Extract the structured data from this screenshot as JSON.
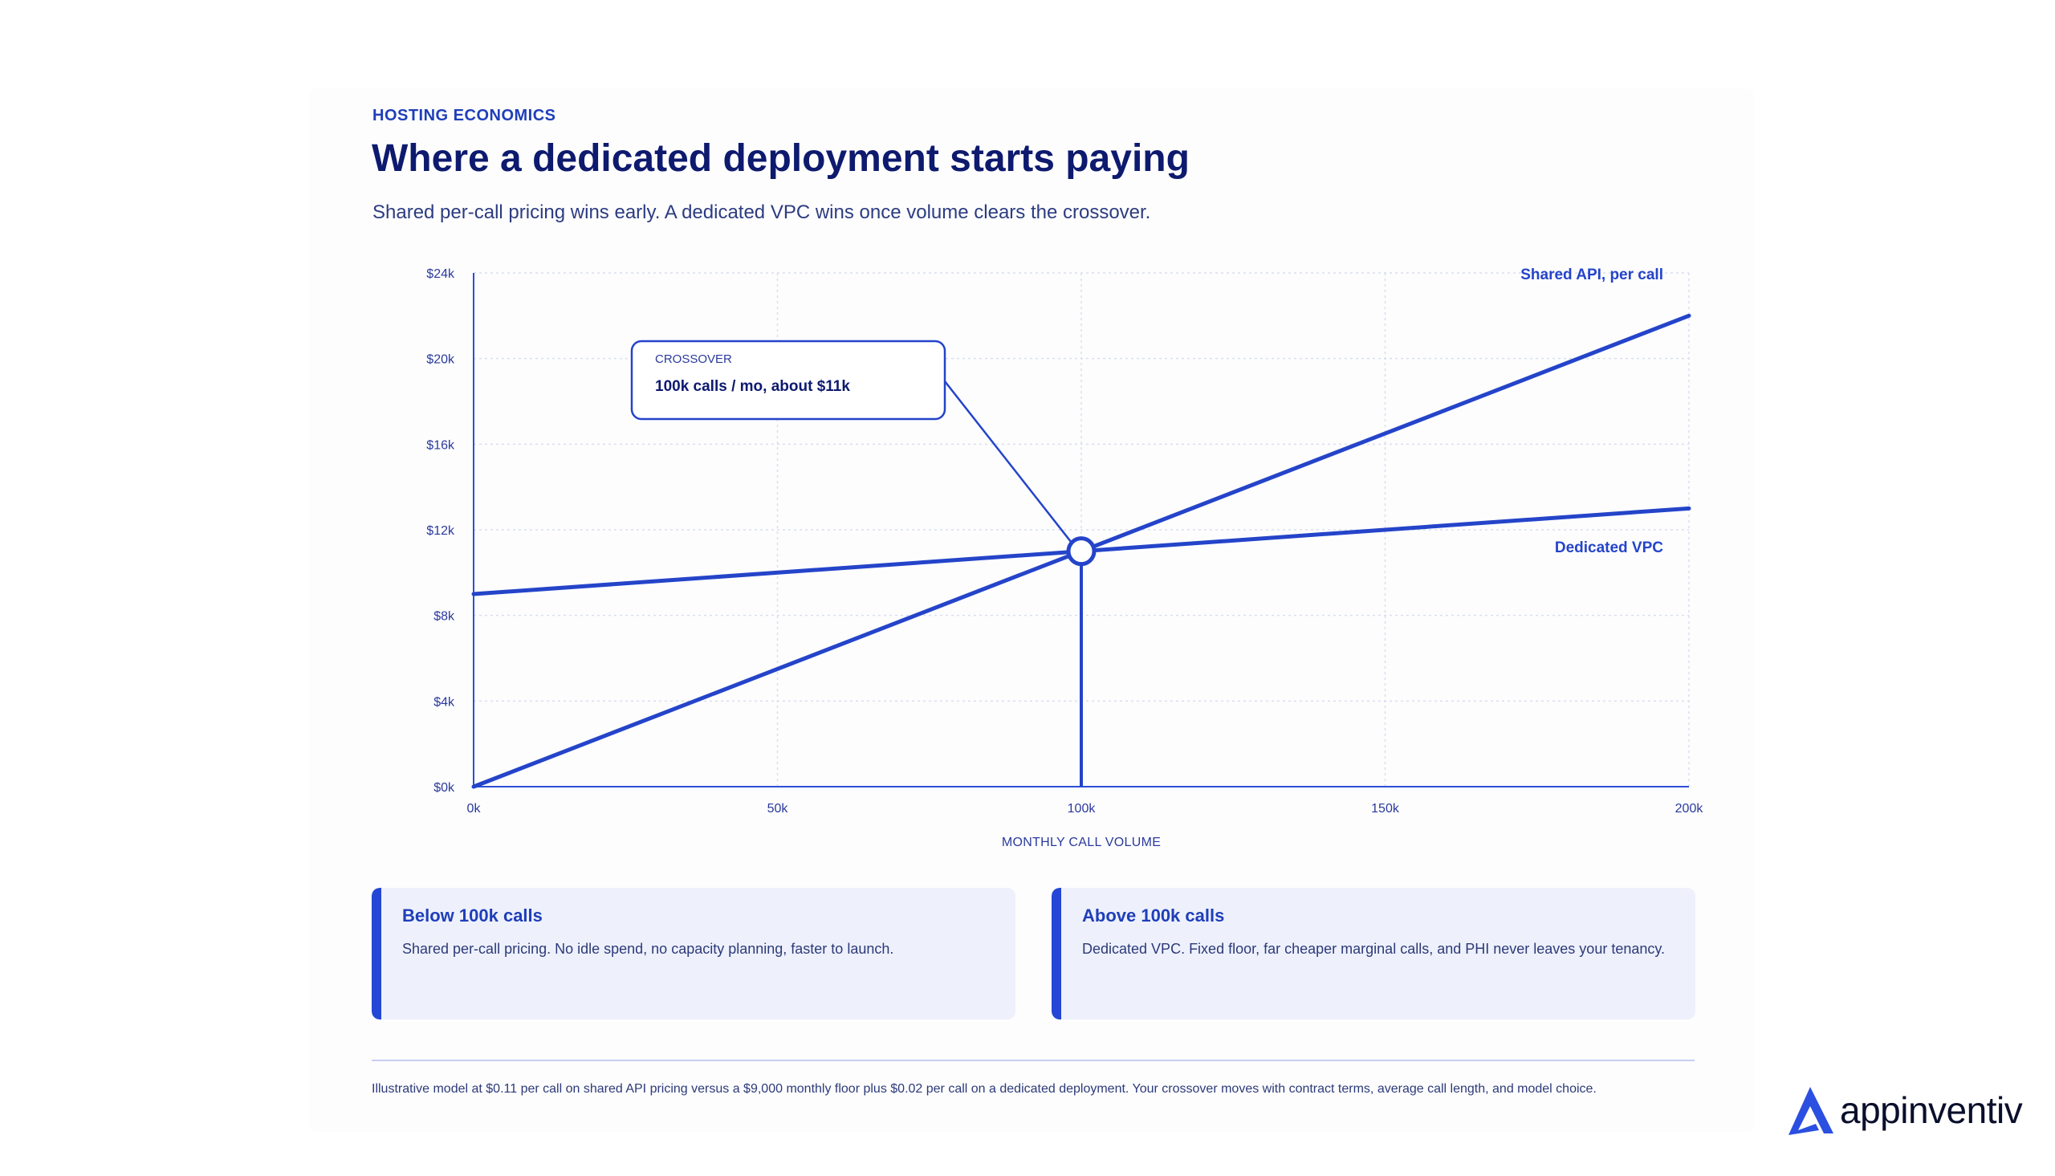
{
  "header": {
    "eyebrow": "HOSTING ECONOMICS",
    "title": "Where a dedicated deployment starts paying",
    "subtitle": "Shared per-call pricing wins early. A dedicated VPC wins once volume clears the crossover."
  },
  "chart_data": {
    "type": "line",
    "xlabel": "MONTHLY CALL VOLUME",
    "ylabel": "",
    "xlim": [
      0,
      200000
    ],
    "ylim": [
      0,
      24000
    ],
    "x_ticks": [
      {
        "value": 0,
        "label": "0k"
      },
      {
        "value": 50000,
        "label": "50k"
      },
      {
        "value": 100000,
        "label": "100k"
      },
      {
        "value": 150000,
        "label": "150k"
      },
      {
        "value": 200000,
        "label": "200k"
      }
    ],
    "y_ticks": [
      {
        "value": 0,
        "label": "$0k"
      },
      {
        "value": 4000,
        "label": "$4k"
      },
      {
        "value": 8000,
        "label": "$8k"
      },
      {
        "value": 12000,
        "label": "$12k"
      },
      {
        "value": 16000,
        "label": "$16k"
      },
      {
        "value": 20000,
        "label": "$20k"
      },
      {
        "value": 24000,
        "label": "$24k"
      }
    ],
    "grid": true,
    "series": [
      {
        "name": "Shared API, per call",
        "x": [
          0,
          200000
        ],
        "y": [
          0,
          22000
        ]
      },
      {
        "name": "Dedicated VPC",
        "x": [
          0,
          200000
        ],
        "y": [
          9000,
          13000
        ]
      }
    ],
    "crossover": {
      "x": 100000,
      "y": 11000
    },
    "annotation": {
      "kicker": "CROSSOVER",
      "text": "100k calls / mo, about $11k"
    },
    "colors": {
      "line": "#2444c9",
      "grid": "#d9def0",
      "axis": "#2f4fd6"
    }
  },
  "panels": [
    {
      "title": "Below 100k calls",
      "body": "Shared per-call pricing. No idle spend, no capacity planning, faster to launch."
    },
    {
      "title": "Above 100k calls",
      "body": "Dedicated VPC. Fixed floor, far cheaper marginal calls, and PHI never leaves your tenancy."
    }
  ],
  "footnote": "Illustrative model at $0.11 per call on shared API pricing versus a $9,000 monthly floor plus $0.02 per call on a dedicated deployment. Your crossover moves with contract terms, average call length, and model choice.",
  "brand": {
    "name": "appinventiv",
    "logo_icon": "appinventiv-a-icon",
    "color": "#2b4fe0"
  }
}
